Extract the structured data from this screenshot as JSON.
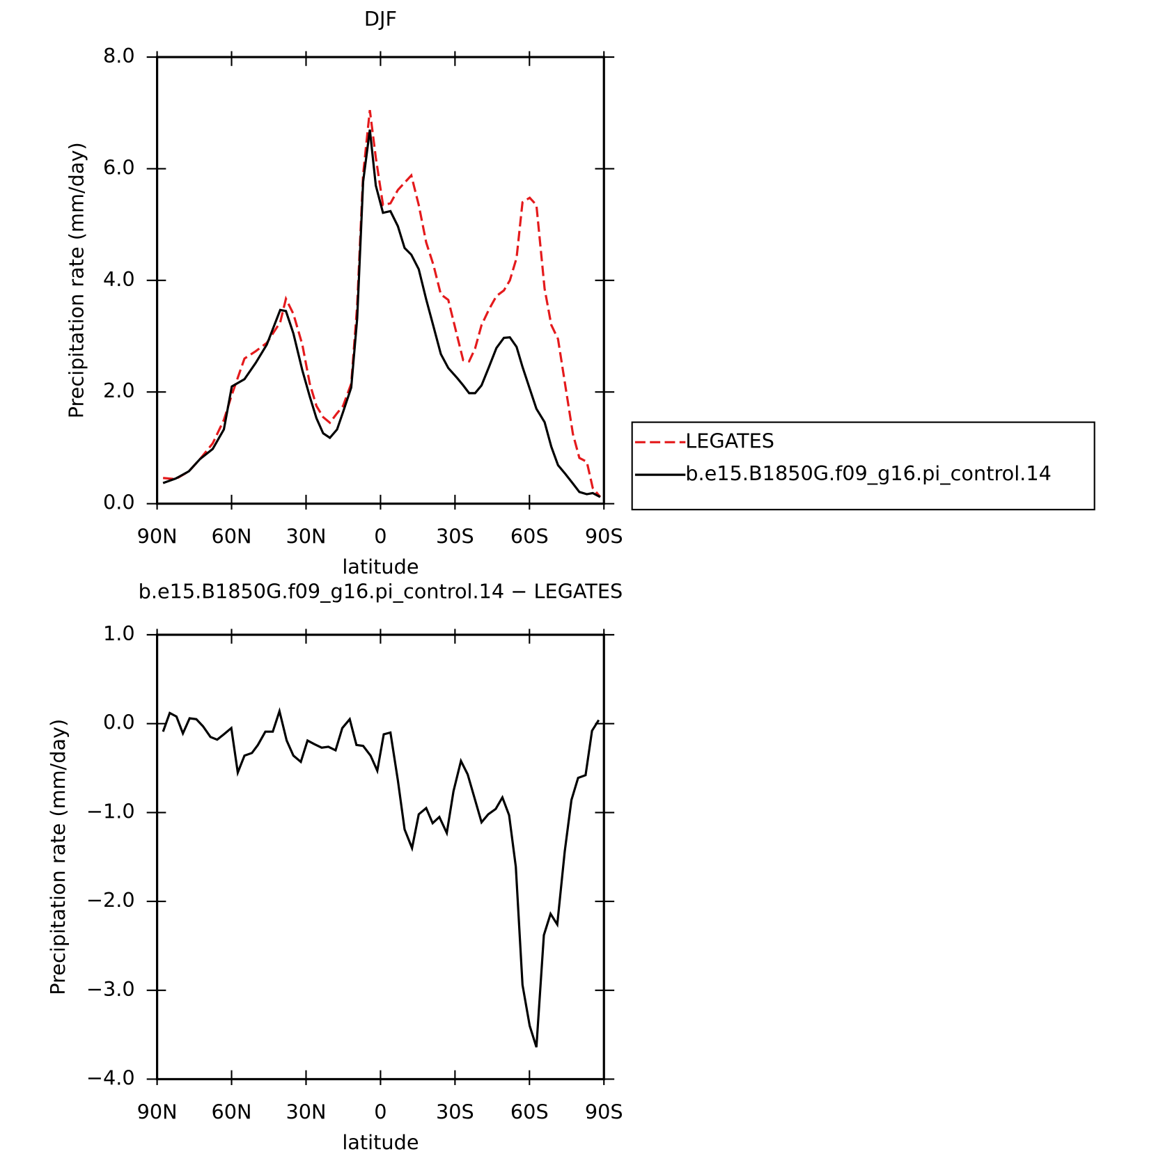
{
  "chart_data": [
    {
      "type": "line",
      "title": "DJF",
      "xlabel": "latitude",
      "ylabel": "Precipitation rate (mm/day)",
      "x": [
        87.6,
        82.5,
        77.2,
        72.7,
        67.6,
        63.1,
        59.9,
        54.8,
        50.3,
        45.8,
        40.4,
        38.1,
        35.1,
        31.5,
        28.5,
        25.8,
        23.1,
        20.4,
        17.5,
        15.1,
        11.8,
        9.4,
        7.0,
        4.3,
        1.9,
        -1.0,
        -4.0,
        -7.0,
        -9.7,
        -12.4,
        -15.4,
        -18.4,
        -21.3,
        -24.3,
        -27.3,
        -30.9,
        -33.3,
        -35.7,
        -38.1,
        -40.7,
        -43.7,
        -46.7,
        -49.7,
        -52.1,
        -54.8,
        -57.2,
        -60.1,
        -62.8,
        -66.1,
        -68.8,
        -71.5,
        -74.5,
        -77.5,
        -80.1,
        -83.1,
        -85.5,
        -88.5
      ],
      "xlim": [
        90,
        -90
      ],
      "xticks": [
        {
          "value": 90,
          "label": "90N"
        },
        {
          "value": 60,
          "label": "60N"
        },
        {
          "value": 30,
          "label": "30N"
        },
        0,
        {
          "value": -30,
          "label": "30S"
        },
        {
          "value": -60,
          "label": "60S"
        },
        {
          "value": -90,
          "label": "90S"
        }
      ],
      "ylim": [
        0,
        8
      ],
      "yticks": [
        {
          "value": 0,
          "label": "0.0"
        },
        {
          "value": 2,
          "label": "2.0"
        },
        {
          "value": 4,
          "label": "4.0"
        },
        {
          "value": 6,
          "label": "6.0"
        },
        {
          "value": 8,
          "label": "8.0"
        }
      ],
      "legend": "right",
      "series": [
        {
          "name": "LEGATES",
          "color": "#e41a1c",
          "dash": "dashed",
          "values": [
            0.46,
            0.44,
            0.58,
            0.8,
            1.08,
            1.5,
            1.95,
            2.6,
            2.73,
            2.88,
            3.25,
            3.67,
            3.4,
            2.85,
            2.15,
            1.75,
            1.55,
            1.45,
            1.62,
            1.75,
            2.15,
            3.55,
            5.9,
            7.05,
            6.2,
            5.35,
            5.38,
            5.62,
            5.75,
            5.88,
            5.35,
            4.68,
            4.28,
            3.75,
            3.65,
            3.0,
            2.57,
            2.55,
            2.78,
            3.2,
            3.48,
            3.72,
            3.82,
            4.0,
            4.4,
            5.4,
            5.48,
            5.35,
            3.85,
            3.2,
            2.95,
            2.1,
            1.25,
            0.82,
            0.75,
            0.28,
            0.12
          ]
        },
        {
          "name": "b.e15.B1850G.f09_g16.pi_control.14",
          "color": "#000000",
          "dash": "solid",
          "values": [
            0.37,
            0.45,
            0.58,
            0.8,
            0.98,
            1.33,
            2.1,
            2.23,
            2.52,
            2.85,
            3.47,
            3.45,
            3.05,
            2.39,
            1.92,
            1.53,
            1.26,
            1.18,
            1.33,
            1.64,
            2.08,
            3.32,
            5.77,
            6.7,
            5.7,
            5.21,
            5.24,
            4.97,
            4.58,
            4.46,
            4.2,
            3.66,
            3.18,
            2.68,
            2.43,
            2.25,
            2.12,
            1.98,
            1.98,
            2.12,
            2.45,
            2.79,
            2.97,
            2.98,
            2.81,
            2.45,
            2.06,
            1.7,
            1.46,
            1.02,
            0.69,
            0.53,
            0.36,
            0.21,
            0.17,
            0.19,
            0.12
          ]
        }
      ]
    },
    {
      "type": "line",
      "title": "b.e15.B1850G.f09_g16.pi_control.14 − LEGATES",
      "xlabel": "latitude",
      "ylabel": "Precipitation rate (mm/day)",
      "x": [
        87.6,
        84.9,
        82.2,
        79.6,
        76.9,
        74.2,
        71.5,
        68.5,
        65.8,
        63.1,
        60.1,
        57.5,
        54.8,
        51.8,
        49.4,
        46.4,
        43.4,
        40.7,
        37.8,
        35.1,
        32.1,
        29.4,
        26.7,
        23.7,
        21.0,
        18.1,
        15.4,
        12.4,
        9.7,
        7.0,
        4.0,
        1.3,
        -1.3,
        -4.0,
        -7.0,
        -9.7,
        -12.7,
        -15.4,
        -18.4,
        -21.0,
        -23.7,
        -26.7,
        -29.4,
        -32.4,
        -35.1,
        -37.8,
        -40.7,
        -43.4,
        -46.4,
        -49.1,
        -51.8,
        -54.5,
        -57.2,
        -60.1,
        -62.8,
        -65.8,
        -68.5,
        -71.2,
        -74.2,
        -76.9,
        -79.6,
        -82.6,
        -85.2,
        -87.9
      ],
      "xlim": [
        90,
        -90
      ],
      "xticks": [
        {
          "value": 90,
          "label": "90N"
        },
        {
          "value": 60,
          "label": "60N"
        },
        {
          "value": 30,
          "label": "30N"
        },
        0,
        {
          "value": -30,
          "label": "30S"
        },
        {
          "value": -60,
          "label": "60S"
        },
        {
          "value": -90,
          "label": "90S"
        }
      ],
      "ylim": [
        -4,
        1
      ],
      "yticks": [
        {
          "value": -4,
          "label": "−4.0"
        },
        {
          "value": -3,
          "label": "−3.0"
        },
        {
          "value": -2,
          "label": "−2.0"
        },
        {
          "value": -1,
          "label": "−1.0"
        },
        {
          "value": 0,
          "label": "0.0"
        },
        {
          "value": 1,
          "label": "1.0"
        }
      ],
      "series": [
        {
          "color": "#000000",
          "dash": "solid",
          "values": [
            -0.09,
            0.12,
            0.08,
            -0.11,
            0.06,
            0.05,
            -0.03,
            -0.15,
            -0.18,
            -0.12,
            -0.05,
            -0.55,
            -0.36,
            -0.33,
            -0.24,
            -0.09,
            -0.09,
            0.14,
            -0.19,
            -0.36,
            -0.43,
            -0.19,
            -0.23,
            -0.27,
            -0.26,
            -0.3,
            -0.05,
            0.05,
            -0.24,
            -0.25,
            -0.36,
            -0.53,
            -0.12,
            -0.1,
            -0.64,
            -1.19,
            -1.4,
            -1.02,
            -0.95,
            -1.12,
            -1.05,
            -1.23,
            -0.76,
            -0.42,
            -0.57,
            -0.83,
            -1.11,
            -1.02,
            -0.96,
            -0.83,
            -1.03,
            -1.61,
            -2.94,
            -3.4,
            -3.64,
            -2.38,
            -2.14,
            -2.26,
            -1.44,
            -0.86,
            -0.61,
            -0.58,
            -0.08,
            0.04
          ]
        }
      ]
    }
  ]
}
